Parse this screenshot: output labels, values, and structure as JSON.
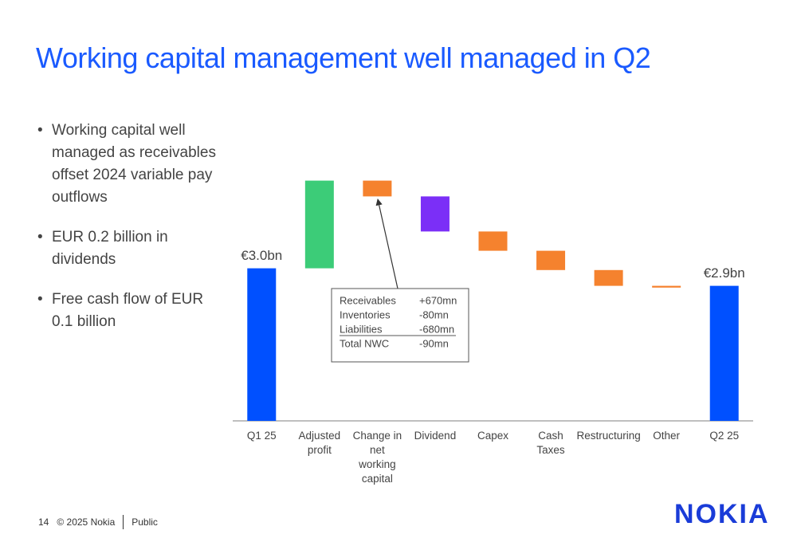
{
  "title": "Working capital management well managed in Q2",
  "bullets": [
    "Working capital well managed as receivables offset 2024 variable pay outflows",
    "EUR 0.2 billion in dividends",
    "Free cash flow of EUR 0.1 billion"
  ],
  "footer": {
    "page": "14",
    "copyright": "© 2025 Nokia",
    "classification": "Public",
    "logo": "NOKIA"
  },
  "chart_data": {
    "type": "waterfall",
    "categories": [
      "Q1 25",
      "Adjusted profit",
      "Change in net working capital",
      "Dividend",
      "Capex",
      "Cash Taxes",
      "Restructuring",
      "Other",
      "Q2 25"
    ],
    "values": [
      3.0,
      0.5,
      -0.09,
      -0.2,
      -0.11,
      -0.11,
      -0.09,
      -0.01,
      2.9
    ],
    "measures": [
      "absolute",
      "relative",
      "relative",
      "relative",
      "relative",
      "relative",
      "relative",
      "relative",
      "absolute"
    ],
    "value_labels": [
      "€3.0bn",
      null,
      null,
      null,
      null,
      null,
      null,
      null,
      "€2.9bn"
    ],
    "colors": [
      "#0050ff",
      "#3ccc78",
      "#f5822e",
      "#7b2ff7",
      "#f5822e",
      "#f5822e",
      "#f5822e",
      "#f5822e",
      "#0050ff"
    ],
    "ylim": [
      2.13,
      3.6
    ],
    "annotation": {
      "rows": [
        [
          "Receivables",
          "+670mn"
        ],
        [
          "Inventories",
          "-80mn"
        ],
        [
          "Liabilities",
          "-680mn"
        ],
        [
          "Total NWC",
          "-90mn"
        ]
      ]
    }
  }
}
